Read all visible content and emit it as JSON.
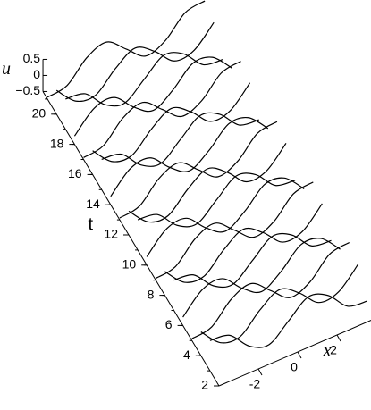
{
  "chart_data": {
    "type": "waterfall",
    "xlabel": "x",
    "ylabel": "t",
    "zlabel": "u",
    "x": [
      -4,
      -3,
      -2,
      -1,
      0,
      1,
      2,
      3,
      4
    ],
    "xlim": [
      -4,
      4
    ],
    "xticks": [
      -2,
      0,
      2
    ],
    "ylim": [
      2,
      21.5
    ],
    "yticks": [
      2,
      4,
      6,
      8,
      10,
      12,
      14,
      16,
      18,
      20
    ],
    "zlim": [
      -0.5,
      0.5
    ],
    "zticks": [
      0.5,
      0,
      {
        "value": -0.5,
        "label": "−0.5"
      }
    ],
    "color": "#000000",
    "series": [
      {
        "t": 3,
        "values": [
          0.44,
          0.34,
          -0.26,
          -0.48,
          0,
          0.48,
          0.26,
          -0.34,
          -0.44
        ]
      },
      {
        "t": 4,
        "values": [
          0.24,
          -0.36,
          -0.43,
          0.13,
          0.5,
          0.13,
          -0.43,
          -0.36,
          0.24
        ]
      },
      {
        "t": 5,
        "values": [
          -0.44,
          -0.34,
          0.26,
          0.48,
          0,
          -0.48,
          -0.26,
          0.34,
          0.44
        ]
      },
      {
        "t": 6,
        "values": [
          -0.24,
          0.36,
          0.43,
          -0.13,
          -0.5,
          -0.13,
          0.43,
          0.36,
          -0.24
        ]
      },
      {
        "t": 7,
        "values": [
          0.44,
          0.34,
          -0.26,
          -0.48,
          0,
          0.48,
          0.26,
          -0.34,
          -0.44
        ]
      },
      {
        "t": 8,
        "values": [
          0.24,
          -0.36,
          -0.43,
          0.13,
          0.5,
          0.13,
          -0.43,
          -0.36,
          0.24
        ]
      },
      {
        "t": 9,
        "values": [
          -0.44,
          -0.34,
          0.26,
          0.48,
          0,
          -0.48,
          -0.26,
          0.34,
          0.44
        ]
      },
      {
        "t": 10,
        "values": [
          -0.24,
          0.36,
          0.43,
          -0.13,
          -0.5,
          -0.13,
          0.43,
          0.36,
          -0.24
        ]
      },
      {
        "t": 11,
        "values": [
          0.44,
          0.34,
          -0.26,
          -0.48,
          0,
          0.48,
          0.26,
          -0.34,
          -0.44
        ]
      },
      {
        "t": 12,
        "values": [
          0.24,
          -0.36,
          -0.43,
          0.13,
          0.5,
          0.13,
          -0.43,
          -0.36,
          0.24
        ]
      },
      {
        "t": 13,
        "values": [
          -0.44,
          -0.34,
          0.26,
          0.48,
          0,
          -0.48,
          -0.26,
          0.34,
          0.44
        ]
      },
      {
        "t": 14,
        "values": [
          -0.24,
          0.36,
          0.43,
          -0.13,
          -0.5,
          -0.13,
          0.43,
          0.36,
          -0.24
        ]
      },
      {
        "t": 15,
        "values": [
          0.44,
          0.34,
          -0.26,
          -0.48,
          0,
          0.48,
          0.26,
          -0.34,
          -0.44
        ]
      },
      {
        "t": 16,
        "values": [
          0.24,
          -0.36,
          -0.43,
          0.13,
          0.5,
          0.13,
          -0.43,
          -0.36,
          0.24
        ]
      },
      {
        "t": 17,
        "values": [
          -0.44,
          -0.34,
          0.26,
          0.48,
          0,
          -0.48,
          -0.26,
          0.34,
          0.44
        ]
      },
      {
        "t": 18,
        "values": [
          -0.24,
          0.36,
          0.43,
          -0.13,
          -0.5,
          -0.13,
          0.43,
          0.36,
          -0.24
        ]
      },
      {
        "t": 19,
        "values": [
          0.44,
          0.34,
          -0.26,
          -0.48,
          0,
          0.48,
          0.26,
          -0.34,
          -0.44
        ]
      },
      {
        "t": 20,
        "values": [
          0.24,
          -0.36,
          -0.43,
          0.13,
          0.5,
          0.13,
          -0.43,
          -0.36,
          0.24
        ]
      },
      {
        "t": 21,
        "values": [
          -0.44,
          -0.34,
          0.26,
          0.48,
          0,
          -0.48,
          -0.26,
          0.34,
          0.44
        ]
      }
    ]
  }
}
